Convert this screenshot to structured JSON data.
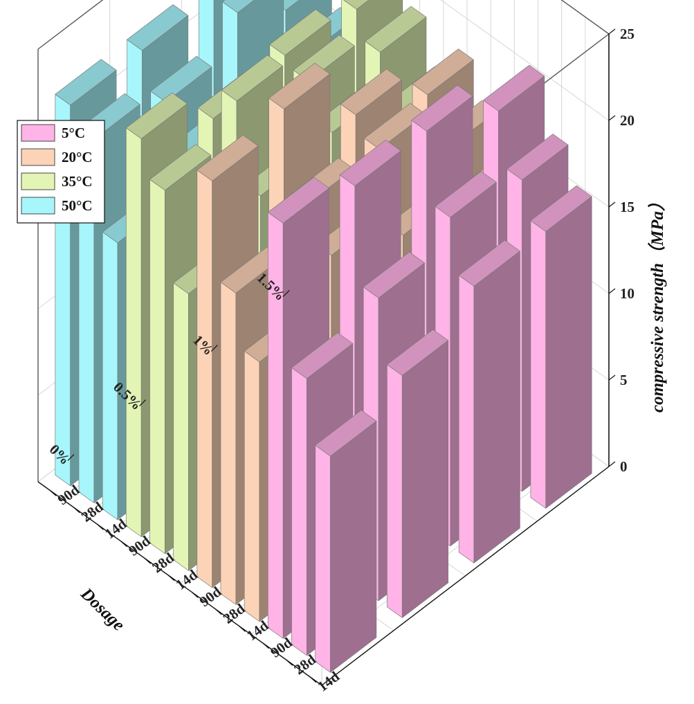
{
  "chart_data": {
    "type": "bar3d",
    "title": "",
    "ylabel": "compressive strength（MPa）",
    "xlabel": "Dosage",
    "dosage_categories": [
      "0%",
      "0.5%",
      "1%",
      "1.5%"
    ],
    "age_tick_labels": [
      "14d",
      "28d",
      "90d",
      "14d",
      "28d",
      "90d",
      "14d",
      "28d",
      "90d",
      "14d",
      "28d",
      "90d"
    ],
    "zlim": [
      0,
      25
    ],
    "z_ticks": [
      0,
      5,
      10,
      15,
      20,
      25
    ],
    "grid": true,
    "legend_position": "top-left",
    "series": [
      {
        "name": "5°C",
        "color": "#ffb3e6",
        "values": [
          [
            12.5,
            16.0,
            24.0
          ],
          [
            14.0,
            17.5,
            23.0
          ],
          [
            16.0,
            19.0,
            23.0
          ],
          [
            16.0,
            18.0,
            21.0
          ]
        ]
      },
      {
        "name": "20°C",
        "color": "#fdd3b7",
        "values": [
          [
            15.0,
            18.0,
            23.5
          ],
          [
            18.0,
            20.0,
            24.5
          ],
          [
            16.0,
            20.0,
            21.0
          ],
          [
            15.0,
            17.0,
            19.0
          ]
        ]
      },
      {
        "name": "35°C",
        "color": "#e2f5b4",
        "values": [
          [
            16.0,
            21.0,
            23.0
          ],
          [
            18.5,
            23.0,
            21.0
          ],
          [
            19.0,
            21.0,
            21.5
          ],
          [
            17.0,
            19.5,
            21.0
          ]
        ]
      },
      {
        "name": "50°C",
        "color": "#a6f6fc",
        "values": [
          [
            16.0,
            21.0,
            22.0
          ],
          [
            18.0,
            20.0,
            22.0
          ],
          [
            18.0,
            22.0,
            22.0
          ],
          [
            14.0,
            16.5,
            18.0
          ]
        ]
      }
    ]
  }
}
